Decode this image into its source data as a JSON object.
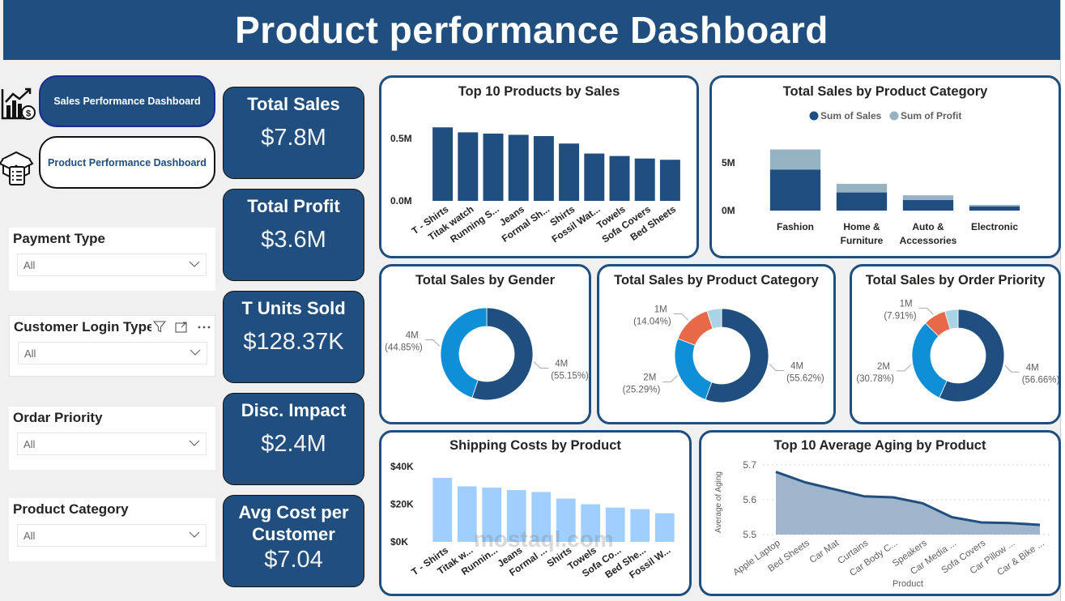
{
  "header": {
    "title": "Product performance Dashboard"
  },
  "nav": {
    "sales_button": "Sales Performance Dashboard",
    "product_button": "Product Performance Dashboard"
  },
  "slicers": [
    {
      "title": "Payment Type",
      "value": "All"
    },
    {
      "title": "Customer Login Type",
      "value": "All"
    },
    {
      "title": "Ordar Priority",
      "value": "All"
    },
    {
      "title": "Product Category",
      "value": "All"
    }
  ],
  "kpis": [
    {
      "label": "Total Sales",
      "value": "$7.8M"
    },
    {
      "label": "Total Profit",
      "value": "$3.6M"
    },
    {
      "label": "T Units Sold",
      "value": "$128.37K"
    },
    {
      "label": "Disc. Impact",
      "value": "$2.4M"
    },
    {
      "label": "Avg Cost per Customer",
      "value": "$7.04"
    }
  ],
  "watermark": "mostaql.com",
  "chart_data": [
    {
      "id": "top10",
      "type": "bar",
      "title": "Top 10 Products by Sales",
      "categories": [
        "T - Shirts",
        "Titak watch",
        "Running S...",
        "Jeans",
        "Formal Sh...",
        "Shirts",
        "Fossil Wat...",
        "Towels",
        "Sofa Covers",
        "Bed Sheets"
      ],
      "values": [
        0.59,
        0.55,
        0.54,
        0.53,
        0.52,
        0.46,
        0.38,
        0.36,
        0.34,
        0.33
      ],
      "yticks": [
        "0.0M",
        "0.5M"
      ],
      "ylim": [
        0,
        0.65
      ],
      "unit": "M",
      "color": "#1f4e7f"
    },
    {
      "id": "catstack",
      "type": "bar",
      "stacked": true,
      "title": "Total Sales by Product Category",
      "categories": [
        "Fashion",
        "Home & Furniture",
        "Auto & Accessories",
        "Electronic"
      ],
      "series": [
        {
          "name": "Sum of Sales",
          "values": [
            4.3,
            1.9,
            1.1,
            0.45
          ],
          "color": "#1f4e7f"
        },
        {
          "name": "Sum of Profit",
          "values": [
            2.1,
            0.9,
            0.5,
            0.15
          ],
          "color": "#95b3c2"
        }
      ],
      "yticks": [
        "0M",
        "5M"
      ],
      "ylim": [
        0,
        8
      ],
      "legend": "top-center"
    },
    {
      "id": "gender",
      "type": "pie",
      "donut": true,
      "title": "Total Sales by Gender",
      "slices": [
        {
          "value": 55.15,
          "label": "4M",
          "pct": "(55.15%)",
          "color": "#1f4e7f"
        },
        {
          "value": 44.85,
          "label": "4M",
          "pct": "(44.85%)",
          "color": "#0e8fd6"
        }
      ]
    },
    {
      "id": "category",
      "type": "pie",
      "donut": true,
      "title": "Total Sales by Product Category",
      "slices": [
        {
          "value": 55.62,
          "label": "4M",
          "pct": "(55.62%)",
          "color": "#1f4e7f"
        },
        {
          "value": 25.29,
          "label": "2M",
          "pct": "(25.29%)",
          "color": "#0e8fd6"
        },
        {
          "value": 14.04,
          "label": "1M",
          "pct": "(14.04%)",
          "color": "#e8684a"
        },
        {
          "value": 5.05,
          "label": "",
          "pct": "",
          "color": "#a8d4e6"
        }
      ]
    },
    {
      "id": "priority",
      "type": "pie",
      "donut": true,
      "title": "Total Sales by Order Priority",
      "slices": [
        {
          "value": 56.66,
          "label": "4M",
          "pct": "(56.66%)",
          "color": "#1f4e7f"
        },
        {
          "value": 30.78,
          "label": "2M",
          "pct": "(30.78%)",
          "color": "#0e8fd6"
        },
        {
          "value": 7.91,
          "label": "1M",
          "pct": "(7.91%)",
          "color": "#e8684a"
        },
        {
          "value": 4.65,
          "label": "",
          "pct": "",
          "color": "#a8d4e6"
        }
      ]
    },
    {
      "id": "shipping",
      "type": "bar",
      "title": "Shipping Costs by Product",
      "categories": [
        "T - Shirts",
        "Titak w...",
        "Runnin...",
        "Jeans",
        "Formal ...",
        "Shirts",
        "Towels",
        "Sofa Co...",
        "Bed She...",
        "Fossil W..."
      ],
      "values": [
        34,
        29.5,
        28.8,
        27.5,
        26.5,
        23,
        20,
        18.2,
        17.4,
        15.2
      ],
      "yticks": [
        "$0K",
        "$20K",
        "$40K"
      ],
      "ylim": [
        0,
        40
      ],
      "unit": "K",
      "color": "#a0cfff"
    },
    {
      "id": "aging",
      "type": "area",
      "title": "Top 10 Average Aging by Product",
      "categories": [
        "Apple Laptop",
        "Bed Sheets",
        "Car Mat",
        "Curtains",
        "Car Body C...",
        "Speakers",
        "Car Media ...",
        "Sofa Covers",
        "Car Pillow ...",
        "Car & Bike ..."
      ],
      "values": [
        5.68,
        5.65,
        5.63,
        5.61,
        5.607,
        5.59,
        5.55,
        5.535,
        5.533,
        5.528
      ],
      "yticks": [
        "5.5",
        "5.6",
        "5.7"
      ],
      "ylim": [
        5.5,
        5.7
      ],
      "xlabel": "Product",
      "ylabel": "Average of Aging",
      "grid": true,
      "color": "#1f4e7f"
    }
  ]
}
